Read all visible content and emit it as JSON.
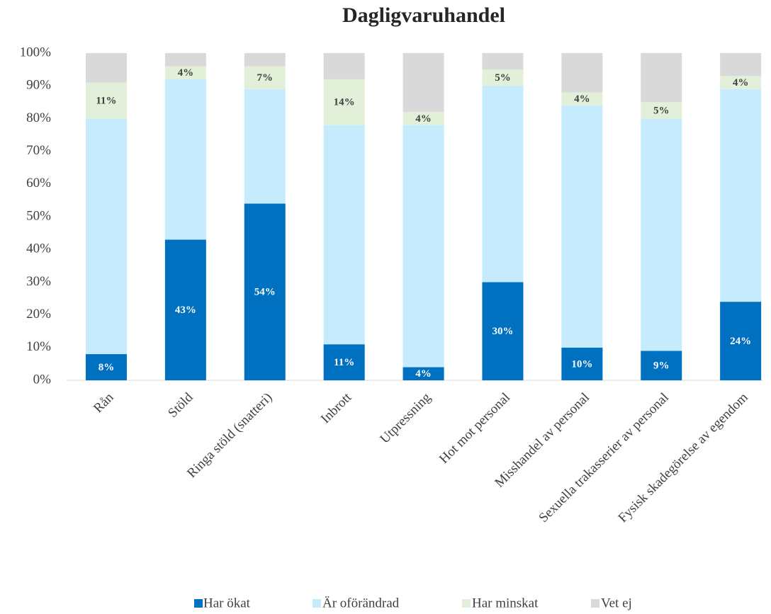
{
  "chart_data": {
    "type": "stacked_bar_100",
    "title": "Dagligvaruhandel",
    "categories": [
      "Rån",
      "Stöld",
      "Ringa stöld (snatteri)",
      "Inbrott",
      "Utpressning",
      "Hot mot personal",
      "Misshandel av personal",
      "Sexuella trakasserier av personal",
      "Fysisk skadegörelse av egendom"
    ],
    "series": [
      {
        "name": "Har ökat",
        "color": "#0070c0",
        "values": [
          8,
          43,
          54,
          11,
          4,
          30,
          10,
          9,
          24
        ],
        "value_labels": [
          "8%",
          "43%",
          "54%",
          "11%",
          "4%",
          "30%",
          "10%",
          "9%",
          "24%"
        ]
      },
      {
        "name": "Är oförändrad",
        "color": "#c5ebfc",
        "values": [
          72,
          49,
          35,
          67,
          74,
          60,
          74,
          71,
          65
        ]
      },
      {
        "name": "Har minskat",
        "color": "#e2efd9",
        "values": [
          11,
          4,
          7,
          14,
          4,
          5,
          4,
          5,
          4
        ],
        "value_labels": [
          "11%",
          "4%",
          "7%",
          "14%",
          "4%",
          "5%",
          "4%",
          "5%",
          "4%"
        ]
      },
      {
        "name": "Vet ej",
        "color": "#d9d9d9",
        "values": [
          9,
          4,
          4,
          8,
          18,
          5,
          12,
          15,
          7
        ]
      }
    ],
    "ylim": [
      0,
      100
    ],
    "yticks": [
      {
        "value": 0,
        "label": "0%"
      },
      {
        "value": 10,
        "label": "10%"
      },
      {
        "value": 20,
        "label": "20%"
      },
      {
        "value": 30,
        "label": "30%"
      },
      {
        "value": 40,
        "label": "40%"
      },
      {
        "value": 50,
        "label": "50%"
      },
      {
        "value": 60,
        "label": "60%"
      },
      {
        "value": 70,
        "label": "70%"
      },
      {
        "value": 80,
        "label": "80%"
      },
      {
        "value": 90,
        "label": "90%"
      },
      {
        "value": 100,
        "label": "100%"
      }
    ],
    "legend": "bottom"
  }
}
